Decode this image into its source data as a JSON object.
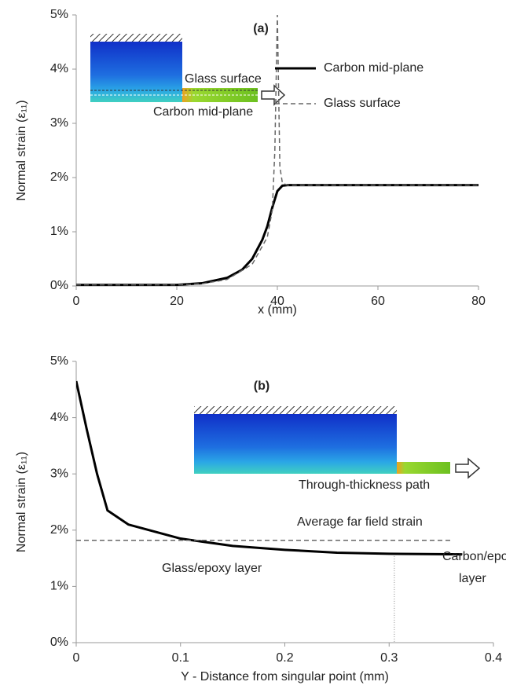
{
  "chart_data": [
    {
      "type": "line",
      "ylabel": "Normal strain (ε₁₁)",
      "xlabel": "x (mm)",
      "annotations": [
        "(a)",
        "Glass surface",
        "Carbon mid-plane"
      ],
      "xlim": [
        0,
        80
      ],
      "xticks": [
        0,
        20,
        40,
        60,
        80
      ],
      "ylim": [
        0,
        5
      ],
      "yticks": [
        {
          "value": 0,
          "label": "0%"
        },
        {
          "value": 1,
          "label": "1%"
        },
        {
          "value": 2,
          "label": "2%"
        },
        {
          "value": 3,
          "label": "3%"
        },
        {
          "value": 4,
          "label": "4%"
        },
        {
          "value": 5,
          "label": "5%"
        }
      ],
      "legend": "upper right",
      "series": [
        {
          "name": "Carbon mid-plane",
          "color": "#000000",
          "style": "solid",
          "x": [
            0,
            10,
            20,
            25,
            30,
            33,
            35,
            37,
            38,
            39,
            40,
            41,
            42,
            60,
            80
          ],
          "values": [
            0.02,
            0.02,
            0.02,
            0.05,
            0.15,
            0.3,
            0.5,
            0.85,
            1.1,
            1.45,
            1.75,
            1.85,
            1.86,
            1.86,
            1.86
          ]
        },
        {
          "name": "Glass surface",
          "color": "#666666",
          "style": "dashed",
          "x": [
            0,
            10,
            20,
            25,
            30,
            35,
            38,
            39,
            39.5,
            40,
            40.5,
            41,
            42,
            60,
            80
          ],
          "values": [
            0.02,
            0.02,
            0.02,
            0.04,
            0.12,
            0.4,
            0.9,
            1.4,
            2.5,
            5.0,
            2.2,
            1.9,
            1.86,
            1.86,
            1.86
          ]
        }
      ]
    },
    {
      "type": "line",
      "ylabel": "Normal strain (ε₁₁)",
      "xlabel": "Y - Distance from singular point (mm)",
      "annotations": [
        "(b)",
        "Through-thickness path",
        "Average far field strain",
        "Glass/epoxy layer",
        "Carbon/epoxy",
        "layer"
      ],
      "xlim": [
        0,
        0.4
      ],
      "xticks": [
        0,
        0.1,
        0.2,
        0.3,
        0.4
      ],
      "ylim": [
        0,
        5
      ],
      "yticks": [
        {
          "value": 0,
          "label": "0%"
        },
        {
          "value": 1,
          "label": "1%"
        },
        {
          "value": 2,
          "label": "2%"
        },
        {
          "value": 3,
          "label": "3%"
        },
        {
          "value": 4,
          "label": "4%"
        },
        {
          "value": 5,
          "label": "5%"
        }
      ],
      "series": [
        {
          "color": "#000000",
          "style": "solid",
          "x": [
            0,
            0.01,
            0.02,
            0.03,
            0.05,
            0.07,
            0.1,
            0.15,
            0.2,
            0.25,
            0.3,
            0.37
          ],
          "values": [
            4.65,
            3.8,
            3.0,
            2.35,
            2.1,
            2.0,
            1.85,
            1.72,
            1.65,
            1.6,
            1.58,
            1.57
          ]
        },
        {
          "color": "#666666",
          "style": "dashed",
          "x": [
            0,
            0.36
          ],
          "values": [
            1.82,
            1.82
          ]
        }
      ],
      "vline": 0.305
    }
  ]
}
